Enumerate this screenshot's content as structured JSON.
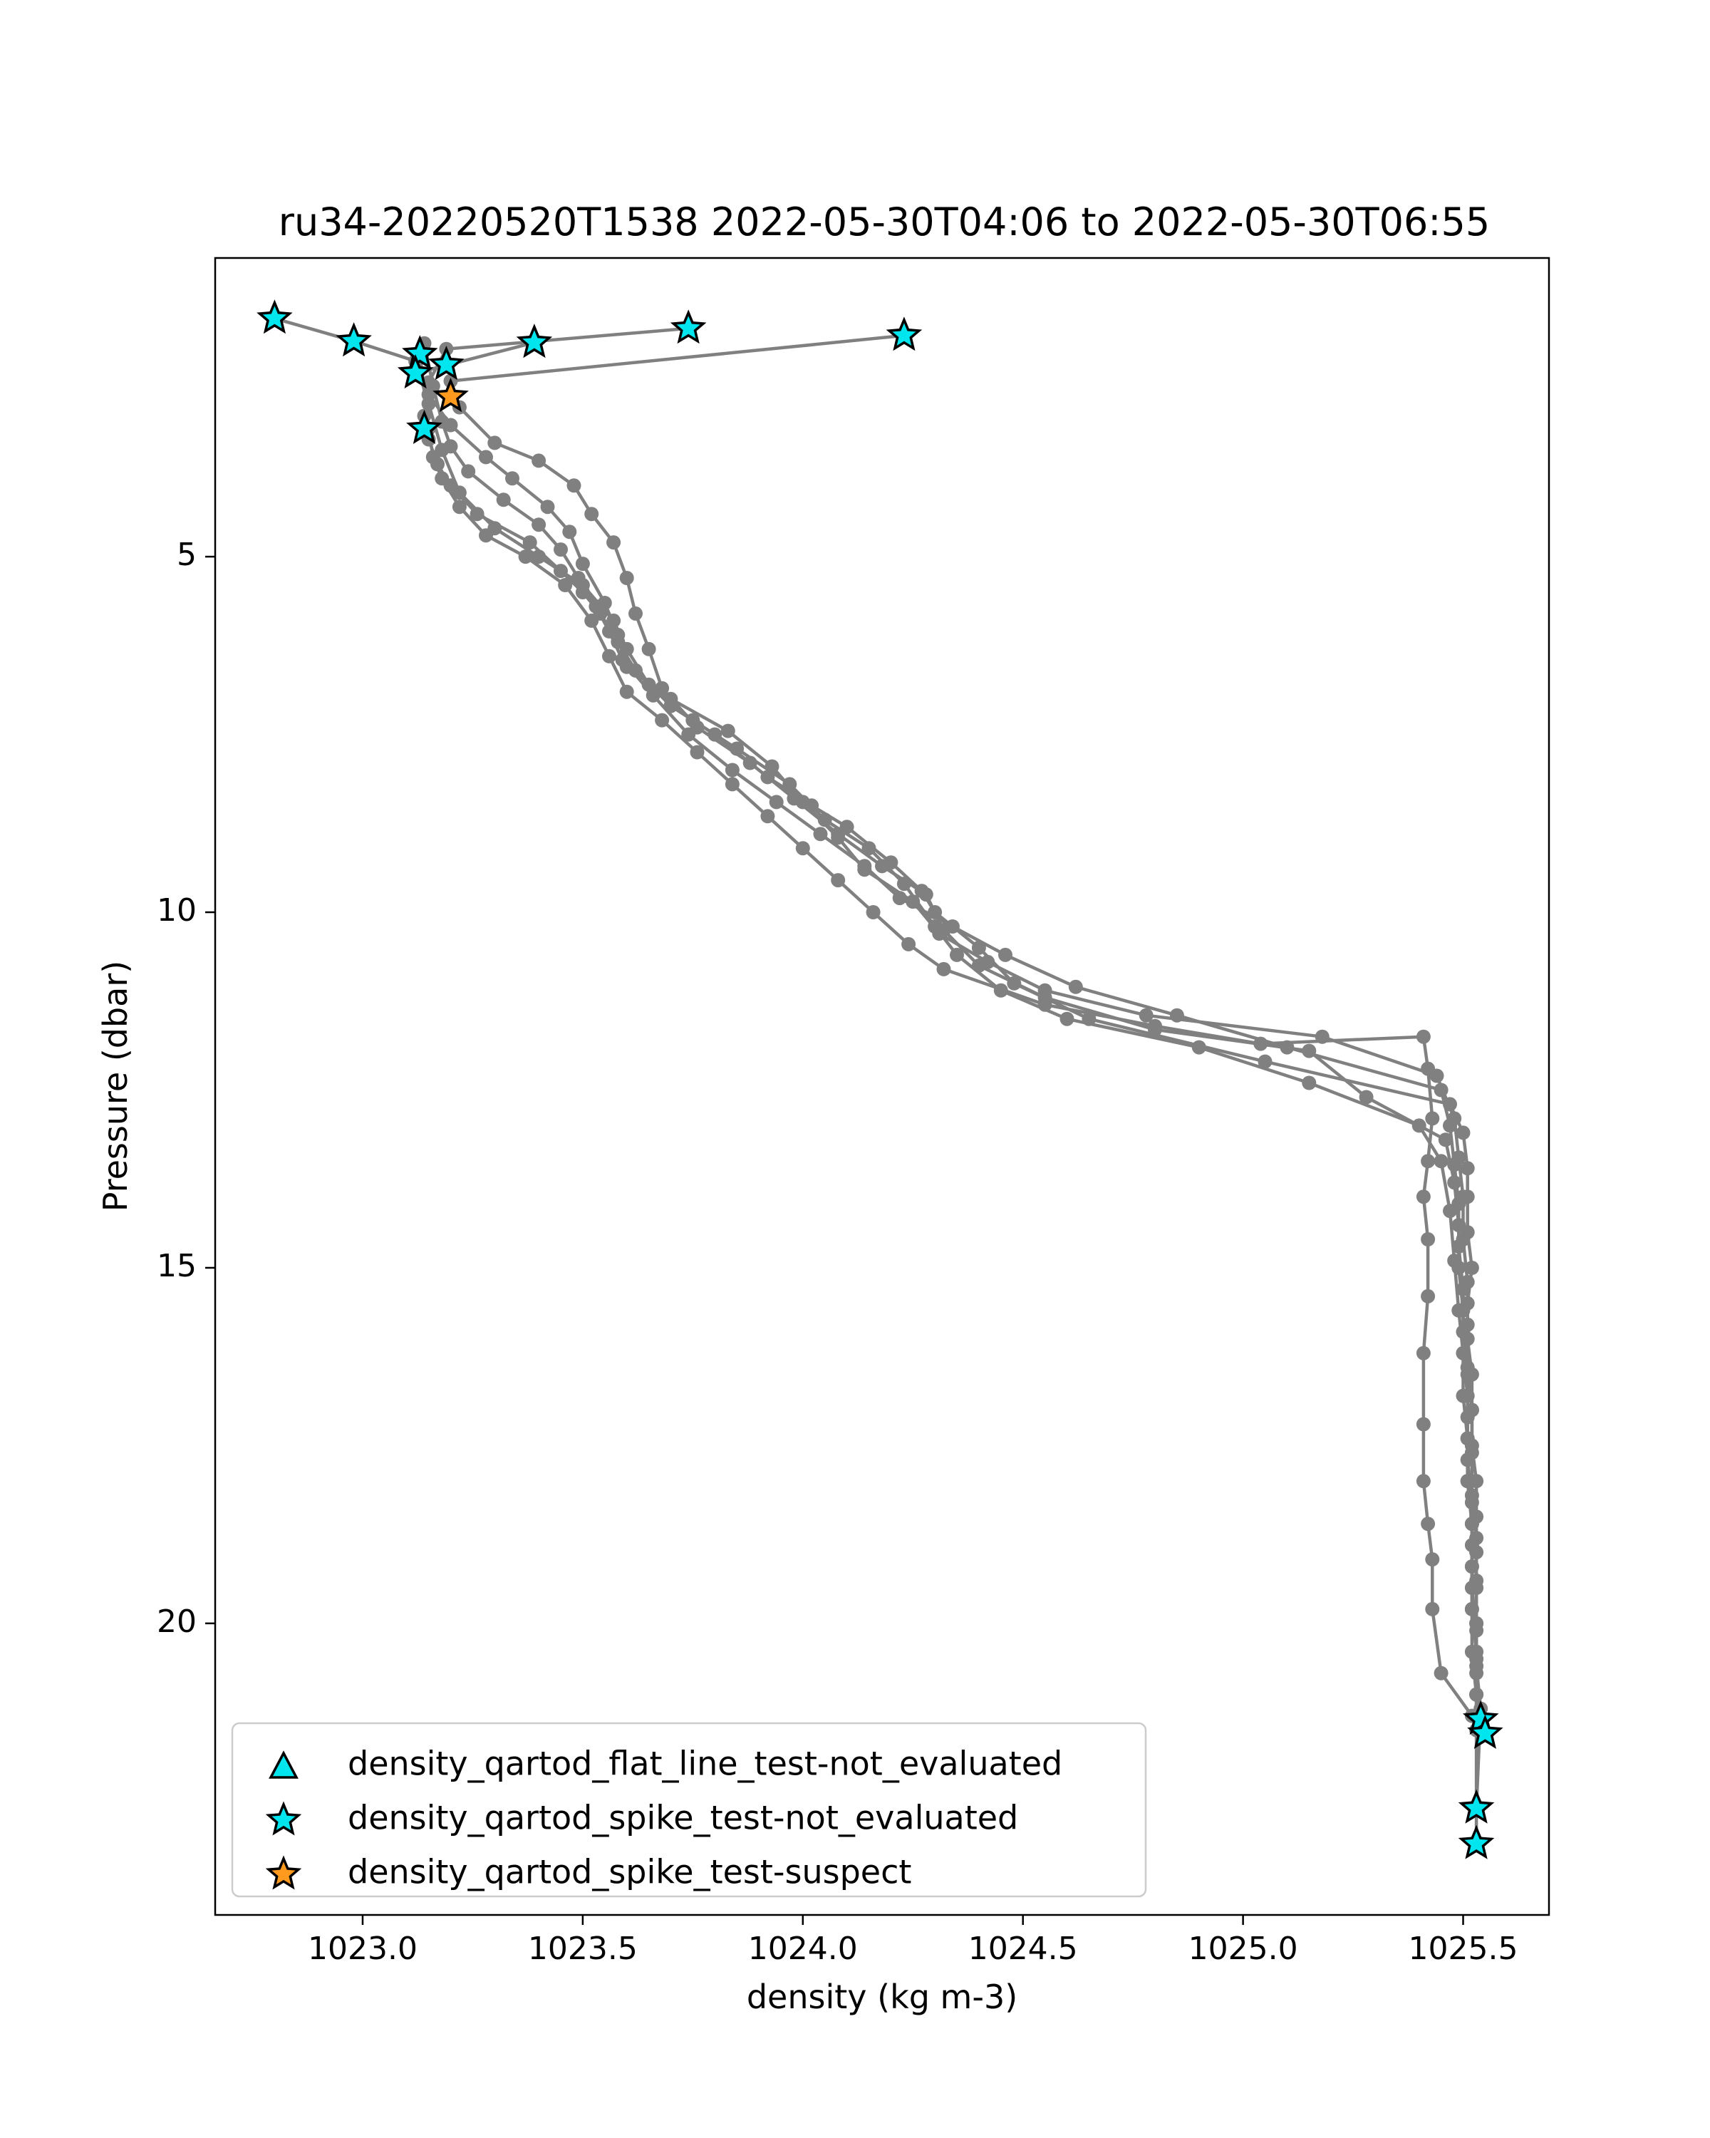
{
  "chart_data": {
    "type": "scatter",
    "title": "ru34-20220520T1538 2022-05-30T04:06 to 2022-05-30T06:55",
    "xlabel": "density (kg m-3)",
    "ylabel": "Pressure (dbar)",
    "xlim": [
      1022.665,
      1025.695
    ],
    "ylim": [
      24.1,
      0.8
    ],
    "y_inverted": true,
    "grid": false,
    "legend_position": "lower-left",
    "x_ticks": [
      1023.0,
      1023.5,
      1024.0,
      1024.5,
      1025.0,
      1025.5
    ],
    "x_tick_labels": [
      "1023.0",
      "1023.5",
      "1024.0",
      "1024.5",
      "1025.0",
      "1025.5"
    ],
    "y_ticks": [
      5,
      10,
      15,
      20
    ],
    "y_tick_labels": [
      "5",
      "10",
      "15",
      "20"
    ],
    "profile_color": "#808080",
    "profiles": [
      [
        [
          1023.74,
          1.79
        ],
        [
          1023.19,
          2.08
        ],
        [
          1023.15,
          2.55
        ],
        [
          1023.14,
          3.02
        ],
        [
          1023.15,
          3.35
        ],
        [
          1023.17,
          3.7
        ],
        [
          1023.2,
          4.0
        ],
        [
          1023.26,
          4.4
        ],
        [
          1023.38,
          4.8
        ],
        [
          1023.45,
          5.2
        ],
        [
          1023.5,
          5.5
        ],
        [
          1023.54,
          5.8
        ],
        [
          1023.58,
          6.2
        ],
        [
          1023.62,
          6.6
        ],
        [
          1023.7,
          7.1
        ],
        [
          1023.8,
          7.5
        ],
        [
          1023.92,
          8.1
        ],
        [
          1024.02,
          8.5
        ],
        [
          1024.1,
          8.8
        ],
        [
          1024.2,
          9.3
        ],
        [
          1024.27,
          9.7
        ],
        [
          1024.3,
          10.0
        ],
        [
          1024.4,
          10.5
        ],
        [
          1024.48,
          11.0
        ],
        [
          1024.65,
          11.5
        ],
        [
          1025.05,
          12.1
        ],
        [
          1025.47,
          12.7
        ],
        [
          1025.5,
          13.1
        ],
        [
          1025.51,
          13.6
        ],
        [
          1025.51,
          14.0
        ],
        [
          1025.51,
          14.5
        ],
        [
          1025.52,
          15.0
        ],
        [
          1025.51,
          15.5
        ],
        [
          1025.51,
          16.0
        ],
        [
          1025.52,
          16.5
        ],
        [
          1025.52,
          17.0
        ],
        [
          1025.52,
          17.5
        ],
        [
          1025.53,
          18.0
        ],
        [
          1025.53,
          18.5
        ],
        [
          1025.53,
          19.0
        ],
        [
          1025.53,
          19.5
        ],
        [
          1025.53,
          20.0
        ],
        [
          1025.53,
          20.5
        ],
        [
          1025.53,
          21.0
        ],
        [
          1025.54,
          21.5
        ],
        [
          1025.55,
          21.55
        ]
      ],
      [
        [
          1022.8,
          1.65
        ],
        [
          1022.98,
          1.97
        ],
        [
          1023.12,
          2.25
        ],
        [
          1023.15,
          2.85
        ],
        [
          1023.18,
          3.5
        ],
        [
          1023.22,
          4.1
        ],
        [
          1023.3,
          4.6
        ],
        [
          1023.4,
          5.0
        ],
        [
          1023.5,
          5.4
        ],
        [
          1023.57,
          5.9
        ],
        [
          1023.6,
          6.3
        ],
        [
          1023.65,
          6.8
        ],
        [
          1023.75,
          7.3
        ],
        [
          1023.85,
          7.7
        ],
        [
          1023.97,
          8.2
        ],
        [
          1024.05,
          8.7
        ],
        [
          1024.15,
          9.1
        ],
        [
          1024.23,
          9.6
        ],
        [
          1024.3,
          10.2
        ],
        [
          1024.35,
          10.6
        ],
        [
          1024.45,
          11.1
        ],
        [
          1024.6,
          11.5
        ],
        [
          1024.9,
          11.9
        ],
        [
          1025.15,
          12.4
        ],
        [
          1025.4,
          13.0
        ],
        [
          1025.45,
          13.5
        ],
        [
          1025.47,
          14.2
        ],
        [
          1025.48,
          14.9
        ],
        [
          1025.49,
          15.6
        ],
        [
          1025.5,
          16.2
        ],
        [
          1025.5,
          16.8
        ],
        [
          1025.51,
          17.4
        ],
        [
          1025.51,
          18.0
        ],
        [
          1025.52,
          18.6
        ],
        [
          1025.52,
          19.2
        ],
        [
          1025.52,
          19.8
        ],
        [
          1025.52,
          20.4
        ],
        [
          1025.53,
          21.0
        ],
        [
          1025.53,
          21.5
        ]
      ],
      [
        [
          1023.39,
          1.99
        ],
        [
          1023.12,
          2.42
        ],
        [
          1023.15,
          2.72
        ],
        [
          1023.2,
          3.15
        ],
        [
          1023.28,
          3.6
        ],
        [
          1023.34,
          3.9
        ],
        [
          1023.42,
          4.3
        ],
        [
          1023.47,
          4.65
        ],
        [
          1023.5,
          5.1
        ],
        [
          1023.55,
          5.65
        ],
        [
          1023.58,
          6.1
        ],
        [
          1023.6,
          6.55
        ],
        [
          1023.7,
          7.0
        ],
        [
          1023.83,
          7.45
        ],
        [
          1023.93,
          7.95
        ],
        [
          1024.0,
          8.45
        ],
        [
          1024.08,
          8.95
        ],
        [
          1024.14,
          9.4
        ],
        [
          1024.25,
          9.85
        ],
        [
          1024.31,
          10.3
        ],
        [
          1024.42,
          10.7
        ],
        [
          1024.55,
          11.1
        ],
        [
          1024.78,
          11.45
        ],
        [
          1025.18,
          11.75
        ],
        [
          1025.44,
          12.3
        ],
        [
          1025.48,
          12.9
        ],
        [
          1025.49,
          13.45
        ],
        [
          1025.5,
          14.0
        ],
        [
          1025.5,
          14.6
        ],
        [
          1025.51,
          15.2
        ],
        [
          1025.51,
          15.8
        ],
        [
          1025.51,
          16.4
        ],
        [
          1025.52,
          17.0
        ],
        [
          1025.52,
          17.6
        ],
        [
          1025.52,
          18.2
        ],
        [
          1025.53,
          18.8
        ],
        [
          1025.53,
          19.4
        ],
        [
          1025.53,
          20.0
        ],
        [
          1025.53,
          20.6
        ],
        [
          1025.54,
          21.2
        ],
        [
          1025.53,
          22.6
        ]
      ],
      [
        [
          1024.23,
          1.89
        ],
        [
          1023.2,
          2.53
        ],
        [
          1023.22,
          2.9
        ],
        [
          1023.3,
          3.4
        ],
        [
          1023.4,
          3.65
        ],
        [
          1023.48,
          4.0
        ],
        [
          1023.52,
          4.4
        ],
        [
          1023.57,
          4.8
        ],
        [
          1023.6,
          5.3
        ],
        [
          1023.62,
          5.8
        ],
        [
          1023.65,
          6.3
        ],
        [
          1023.68,
          6.85
        ],
        [
          1023.76,
          7.4
        ],
        [
          1023.88,
          7.9
        ],
        [
          1023.98,
          8.4
        ],
        [
          1024.08,
          8.9
        ],
        [
          1024.18,
          9.35
        ],
        [
          1024.28,
          9.75
        ],
        [
          1024.32,
          10.25
        ],
        [
          1024.4,
          10.75
        ],
        [
          1024.55,
          11.2
        ],
        [
          1024.8,
          11.65
        ],
        [
          1025.15,
          11.95
        ],
        [
          1025.28,
          12.6
        ],
        [
          1025.46,
          13.2
        ],
        [
          1025.48,
          13.8
        ],
        [
          1025.49,
          14.4
        ],
        [
          1025.49,
          15.0
        ],
        [
          1025.5,
          15.6
        ],
        [
          1025.5,
          16.2
        ],
        [
          1025.51,
          16.8
        ],
        [
          1025.51,
          17.4
        ],
        [
          1025.51,
          18.0
        ],
        [
          1025.52,
          18.6
        ],
        [
          1025.52,
          19.2
        ],
        [
          1025.52,
          19.8
        ],
        [
          1025.53,
          20.4
        ],
        [
          1025.53,
          21.0
        ],
        [
          1025.53,
          23.1
        ]
      ],
      [
        [
          1023.13,
          2.15
        ],
        [
          1023.15,
          3.2
        ],
        [
          1023.16,
          3.6
        ],
        [
          1023.18,
          3.9
        ],
        [
          1023.22,
          4.3
        ],
        [
          1023.28,
          4.7
        ],
        [
          1023.37,
          5.0
        ],
        [
          1023.46,
          5.4
        ],
        [
          1023.52,
          5.9
        ],
        [
          1023.56,
          6.4
        ],
        [
          1023.6,
          6.9
        ],
        [
          1023.68,
          7.3
        ],
        [
          1023.76,
          7.75
        ],
        [
          1023.84,
          8.2
        ],
        [
          1023.92,
          8.65
        ],
        [
          1024.0,
          9.1
        ],
        [
          1024.08,
          9.55
        ],
        [
          1024.16,
          10.0
        ],
        [
          1024.24,
          10.45
        ],
        [
          1024.32,
          10.8
        ],
        [
          1024.55,
          11.3
        ],
        [
          1024.8,
          11.6
        ],
        [
          1025.04,
          11.85
        ],
        [
          1025.41,
          11.75
        ],
        [
          1025.42,
          12.2
        ],
        [
          1025.43,
          12.9
        ],
        [
          1025.42,
          13.5
        ],
        [
          1025.41,
          14.0
        ],
        [
          1025.42,
          14.6
        ],
        [
          1025.42,
          15.4
        ],
        [
          1025.41,
          16.2
        ],
        [
          1025.41,
          17.2
        ],
        [
          1025.41,
          18.0
        ],
        [
          1025.42,
          18.6
        ],
        [
          1025.43,
          19.1
        ],
        [
          1025.43,
          19.8
        ],
        [
          1025.45,
          20.7
        ],
        [
          1025.52,
          21.3
        ]
      ],
      [
        [
          1023.14,
          2.0
        ],
        [
          1023.16,
          2.6
        ],
        [
          1023.18,
          3.1
        ],
        [
          1023.2,
          3.45
        ],
        [
          1023.24,
          3.8
        ],
        [
          1023.32,
          4.2
        ],
        [
          1023.4,
          4.55
        ],
        [
          1023.45,
          4.9
        ],
        [
          1023.49,
          5.3
        ],
        [
          1023.53,
          5.7
        ],
        [
          1023.56,
          6.05
        ],
        [
          1023.59,
          6.45
        ],
        [
          1023.66,
          6.95
        ],
        [
          1023.74,
          7.5
        ],
        [
          1023.84,
          8.0
        ],
        [
          1023.94,
          8.45
        ],
        [
          1024.04,
          8.9
        ],
        [
          1024.14,
          9.35
        ],
        [
          1024.22,
          9.8
        ],
        [
          1024.34,
          10.2
        ],
        [
          1024.46,
          10.6
        ],
        [
          1024.62,
          11.05
        ],
        [
          1024.85,
          11.45
        ],
        [
          1025.1,
          11.9
        ],
        [
          1025.45,
          12.5
        ],
        [
          1025.47,
          13.0
        ],
        [
          1025.48,
          13.55
        ],
        [
          1025.49,
          14.1
        ],
        [
          1025.49,
          14.7
        ],
        [
          1025.5,
          15.3
        ],
        [
          1025.5,
          15.9
        ],
        [
          1025.51,
          16.5
        ],
        [
          1025.51,
          17.1
        ],
        [
          1025.51,
          17.7
        ],
        [
          1025.52,
          18.3
        ],
        [
          1025.52,
          18.9
        ],
        [
          1025.52,
          19.5
        ],
        [
          1025.53,
          20.1
        ],
        [
          1025.53,
          20.7
        ],
        [
          1025.54,
          21.4
        ]
      ]
    ],
    "qc_points": [
      {
        "x": 1022.8,
        "y": 1.65,
        "flag": "not_evaluated"
      },
      {
        "x": 1022.98,
        "y": 1.97,
        "flag": "not_evaluated"
      },
      {
        "x": 1023.13,
        "y": 2.15,
        "flag": "not_evaluated"
      },
      {
        "x": 1023.12,
        "y": 2.42,
        "flag": "not_evaluated"
      },
      {
        "x": 1023.19,
        "y": 2.3,
        "flag": "not_evaluated"
      },
      {
        "x": 1023.39,
        "y": 1.99,
        "flag": "not_evaluated"
      },
      {
        "x": 1023.74,
        "y": 1.79,
        "flag": "not_evaluated"
      },
      {
        "x": 1024.23,
        "y": 1.89,
        "flag": "not_evaluated"
      },
      {
        "x": 1023.14,
        "y": 3.2,
        "flag": "not_evaluated"
      },
      {
        "x": 1023.2,
        "y": 2.75,
        "flag": "suspect"
      },
      {
        "x": 1025.54,
        "y": 21.35,
        "flag": "not_evaluated"
      },
      {
        "x": 1025.55,
        "y": 21.55,
        "flag": "not_evaluated"
      },
      {
        "x": 1025.53,
        "y": 22.6,
        "flag": "not_evaluated"
      },
      {
        "x": 1025.53,
        "y": 23.1,
        "flag": "not_evaluated"
      }
    ],
    "legend": [
      {
        "label": "density_qartod_flat_line_test-not_evaluated",
        "marker": "triangle",
        "color": "#00e5ee"
      },
      {
        "label": "density_qartod_spike_test-not_evaluated",
        "marker": "star",
        "color": "#00e5ee"
      },
      {
        "label": "density_qartod_spike_test-suspect",
        "marker": "star",
        "color": "#ff9a1f"
      }
    ],
    "flag_colors": {
      "not_evaluated": "#00e5ee",
      "suspect": "#ff9a1f"
    }
  }
}
